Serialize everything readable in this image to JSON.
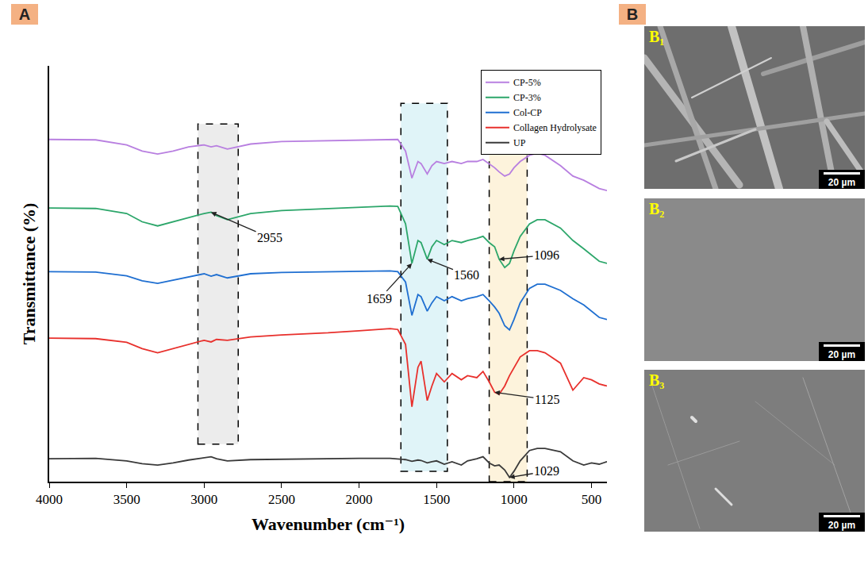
{
  "chart_data": {
    "type": "line",
    "panel": "A",
    "xlabel": "Wavenumber (cm⁻¹)",
    "ylabel": "Transmittance (%)",
    "xlim": [
      4000,
      400
    ],
    "xticks": [
      4000,
      3500,
      3000,
      2500,
      2000,
      1500,
      1000,
      500
    ],
    "ylim": [
      0,
      100
    ],
    "grid": false,
    "tick_labels": "x",
    "legend": "top right",
    "x": [
      4000,
      3700,
      3500,
      3400,
      3300,
      3200,
      3100,
      3000,
      2955,
      2920,
      2850,
      2700,
      2500,
      2200,
      2000,
      1800,
      1750,
      1700,
      1659,
      1620,
      1600,
      1560,
      1530,
      1500,
      1450,
      1400,
      1340,
      1300,
      1240,
      1200,
      1160,
      1125,
      1096,
      1060,
      1029,
      1000,
      960,
      900,
      850,
      800,
      700,
      620,
      550,
      500,
      450,
      400
    ],
    "series": [
      {
        "name": "CP-5%",
        "color": "#b87fe0",
        "values": [
          82.3,
          82.2,
          81.0,
          79.5,
          78.8,
          79.5,
          80.5,
          81.0,
          80.5,
          80.8,
          80.0,
          81.2,
          81.8,
          82.0,
          82.2,
          82.4,
          82.3,
          79.5,
          73.0,
          77.0,
          76.5,
          74.0,
          76.0,
          77.0,
          76.5,
          77.0,
          76.5,
          77.0,
          77.0,
          77.5,
          76.5,
          75.5,
          74.5,
          73.5,
          74.0,
          75.5,
          77.0,
          78.5,
          79.0,
          78.5,
          76.0,
          73.5,
          72.5,
          71.5,
          70.5,
          70.0
        ]
      },
      {
        "name": "CP-3%",
        "color": "#2ca66a",
        "values": [
          65.8,
          65.7,
          64.5,
          62.5,
          61.5,
          62.5,
          63.5,
          64.5,
          64.8,
          64.0,
          63.0,
          64.5,
          65.2,
          65.7,
          66.0,
          66.3,
          66.2,
          62.0,
          52.5,
          58.0,
          57.5,
          53.5,
          56.5,
          58.0,
          57.0,
          58.0,
          57.5,
          58.0,
          58.5,
          59.0,
          57.5,
          56.5,
          53.5,
          51.5,
          52.5,
          55.5,
          59.0,
          62.0,
          63.0,
          63.0,
          61.0,
          58.0,
          56.0,
          54.5,
          53.0,
          52.5
        ]
      },
      {
        "name": "Col-CP",
        "color": "#1f6fd1",
        "values": [
          50.5,
          50.4,
          49.5,
          48.3,
          47.7,
          48.5,
          49.3,
          50.0,
          49.4,
          49.8,
          49.0,
          50.0,
          50.3,
          50.5,
          50.6,
          50.7,
          50.5,
          48.0,
          40.0,
          45.0,
          44.5,
          41.0,
          43.0,
          44.5,
          43.5,
          44.5,
          43.5,
          44.0,
          44.5,
          45.0,
          43.5,
          42.0,
          40.5,
          37.5,
          36.5,
          39.0,
          43.0,
          46.5,
          47.5,
          47.5,
          46.0,
          44.0,
          42.5,
          41.0,
          39.5,
          39.0
        ]
      },
      {
        "name": "Collagen Hydrolysate",
        "color": "#e8302c",
        "values": [
          34.5,
          34.4,
          33.5,
          32.0,
          31.0,
          32.0,
          33.0,
          34.0,
          33.6,
          34.2,
          34.0,
          34.8,
          35.3,
          35.8,
          36.3,
          36.8,
          36.6,
          33.0,
          18.0,
          27.5,
          29.0,
          19.5,
          23.0,
          26.0,
          24.0,
          26.0,
          24.5,
          25.5,
          25.0,
          26.5,
          24.0,
          21.5,
          21.0,
          23.0,
          25.5,
          27.5,
          30.0,
          31.5,
          31.5,
          31.0,
          28.5,
          22.0,
          25.0,
          24.5,
          23.5,
          23.0
        ]
      },
      {
        "name": "UP",
        "color": "#3a3a3a",
        "values": [
          5.5,
          5.6,
          5.0,
          4.3,
          4.0,
          4.5,
          5.2,
          5.8,
          6.0,
          5.5,
          5.0,
          5.3,
          5.4,
          5.5,
          5.6,
          5.6,
          5.5,
          5.3,
          4.9,
          5.2,
          5.1,
          4.5,
          4.8,
          5.0,
          4.2,
          4.8,
          4.0,
          5.0,
          5.5,
          6.0,
          4.5,
          3.8,
          4.0,
          2.8,
          1.0,
          2.5,
          5.0,
          7.5,
          8.0,
          8.0,
          7.2,
          5.0,
          4.0,
          4.5,
          4.2,
          4.8
        ]
      }
    ],
    "regions": [
      {
        "x": [
          3040,
          2780
        ],
        "color": "#ececec"
      },
      {
        "x": [
          1730,
          1430
        ],
        "color": "#e0f4f8"
      },
      {
        "x": [
          1160,
          915
        ],
        "color": "#fdf3dc"
      }
    ],
    "annotations": [
      {
        "text": "2955",
        "x": 2955,
        "y": 64.8
      },
      {
        "text": "1659",
        "x": 1659,
        "y": 52.5
      },
      {
        "text": "1560",
        "x": 1560,
        "y": 53.5
      },
      {
        "text": "1096",
        "x": 1096,
        "y": 53.5
      },
      {
        "text": "1125",
        "x": 1125,
        "y": 21.5
      },
      {
        "text": "1029",
        "x": 1029,
        "y": 1.0
      }
    ]
  },
  "panel_b": {
    "label": "B",
    "images": [
      {
        "label": "B₁",
        "scale_bar": "20 µm"
      },
      {
        "label": "B₂",
        "scale_bar": "20 µm"
      },
      {
        "label": "B₃",
        "scale_bar": "20 µm"
      }
    ]
  }
}
